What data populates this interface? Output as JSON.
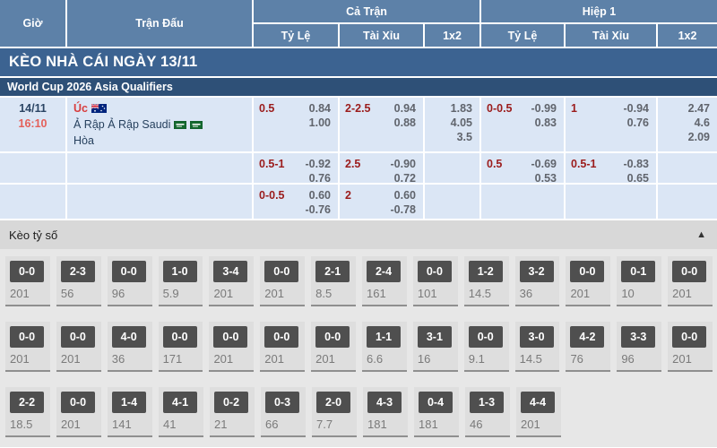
{
  "table_header": {
    "time": "Giờ",
    "match": "Trận Đấu",
    "full_time": "Cả Trận",
    "first_half": "Hiệp 1",
    "handicap": "Tỷ Lệ",
    "over_under": "Tài Xỉu",
    "one_x_two": "1x2"
  },
  "banner": {
    "title": "KÈO NHÀ CÁI NGÀY 13/11"
  },
  "league": {
    "name": "World Cup 2026 Asia Qualifiers"
  },
  "match": {
    "date": "14/11",
    "time": "16:10",
    "home_team": "Úc",
    "away_team": "Ả Rập Ả Rập Saudi",
    "draw_label": "Hòa",
    "home_flag": "australia-flag",
    "away_flags": "saudi-arabia-flags"
  },
  "odds_rows": [
    {
      "ft_hdp": {
        "line": "0.5",
        "top": "0.84",
        "bottom": "1.00"
      },
      "ft_ou": {
        "line": "2-2.5",
        "top": "0.94",
        "bottom": "0.88"
      },
      "ft_1x2": [
        "1.83",
        "4.05",
        "3.5"
      ],
      "h1_hdp": {
        "line": "0-0.5",
        "top": "-0.99",
        "bottom": "0.83"
      },
      "h1_ou": {
        "line": "1",
        "top": "-0.94",
        "bottom": "0.76"
      },
      "h1_1x2": [
        "2.47",
        "4.6",
        "2.09"
      ]
    },
    {
      "ft_hdp": {
        "line": "0.5-1",
        "top": "-0.92",
        "bottom": "0.76"
      },
      "ft_ou": {
        "line": "2.5",
        "top": "-0.90",
        "bottom": "0.72"
      },
      "ft_1x2": [],
      "h1_hdp": {
        "line": "0.5",
        "top": "-0.69",
        "bottom": "0.53"
      },
      "h1_ou": {
        "line": "0.5-1",
        "top": "-0.83",
        "bottom": "0.65"
      },
      "h1_1x2": []
    },
    {
      "ft_hdp": {
        "line": "0-0.5",
        "top": "0.60",
        "bottom": "-0.76"
      },
      "ft_ou": {
        "line": "2",
        "top": "0.60",
        "bottom": "-0.78"
      },
      "ft_1x2": [],
      "h1_hdp": null,
      "h1_ou": null,
      "h1_1x2": []
    }
  ],
  "score_section": {
    "title": "Kèo tỷ số",
    "collapse_icon": "▲",
    "rows": [
      [
        {
          "score": "0-0",
          "odds": "201"
        },
        {
          "score": "2-3",
          "odds": "56"
        },
        {
          "score": "0-0",
          "odds": "96"
        },
        {
          "score": "1-0",
          "odds": "5.9"
        },
        {
          "score": "3-4",
          "odds": "201"
        },
        {
          "score": "0-0",
          "odds": "201"
        },
        {
          "score": "2-1",
          "odds": "8.5"
        },
        {
          "score": "2-4",
          "odds": "161"
        },
        {
          "score": "0-0",
          "odds": "101"
        },
        {
          "score": "1-2",
          "odds": "14.5"
        },
        {
          "score": "3-2",
          "odds": "36"
        },
        {
          "score": "0-0",
          "odds": "201"
        },
        {
          "score": "0-1",
          "odds": "10"
        },
        {
          "score": "0-0",
          "odds": "201"
        }
      ],
      [
        {
          "score": "0-0",
          "odds": "201"
        },
        {
          "score": "0-0",
          "odds": "201"
        },
        {
          "score": "4-0",
          "odds": "36"
        },
        {
          "score": "0-0",
          "odds": "171"
        },
        {
          "score": "0-0",
          "odds": "201"
        },
        {
          "score": "0-0",
          "odds": "201"
        },
        {
          "score": "0-0",
          "odds": "201"
        },
        {
          "score": "1-1",
          "odds": "6.6"
        },
        {
          "score": "3-1",
          "odds": "16"
        },
        {
          "score": "0-0",
          "odds": "9.1"
        },
        {
          "score": "3-0",
          "odds": "14.5"
        },
        {
          "score": "4-2",
          "odds": "76"
        },
        {
          "score": "3-3",
          "odds": "96"
        },
        {
          "score": "0-0",
          "odds": "201"
        }
      ],
      [
        {
          "score": "2-2",
          "odds": "18.5"
        },
        {
          "score": "0-0",
          "odds": "201"
        },
        {
          "score": "1-4",
          "odds": "141"
        },
        {
          "score": "4-1",
          "odds": "41"
        },
        {
          "score": "0-2",
          "odds": "21"
        },
        {
          "score": "0-3",
          "odds": "66"
        },
        {
          "score": "2-0",
          "odds": "7.7"
        },
        {
          "score": "4-3",
          "odds": "181"
        },
        {
          "score": "0-4",
          "odds": "181"
        },
        {
          "score": "1-3",
          "odds": "46"
        },
        {
          "score": "4-4",
          "odds": "201"
        }
      ]
    ]
  },
  "colors": {
    "header_bg": "#5d81a8",
    "banner_bg": "#3c6391",
    "league_bg": "#2e5077",
    "row_bg": "#dbe6f5",
    "handicap_red": "#9b1c1c",
    "value_grey": "#60646c",
    "time_red": "#e4605a",
    "score_box_bg": "#4f4f4f",
    "score_section_bg": "#e7e7e7"
  }
}
